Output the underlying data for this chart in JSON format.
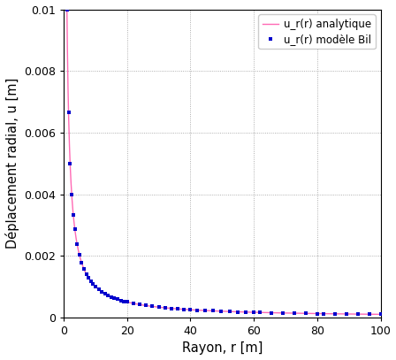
{
  "title": "",
  "xlabel": "Rayon, r [m]",
  "ylabel": "Déplacement radial, u [m]",
  "xlim": [
    0,
    100
  ],
  "ylim": [
    0,
    0.01
  ],
  "xticks": [
    0,
    20,
    40,
    60,
    80,
    100
  ],
  "yticks": [
    0,
    0.002,
    0.004,
    0.006,
    0.008,
    0.01
  ],
  "r_min": 1.0,
  "r_max": 100.0,
  "C": 0.01,
  "line_color": "#ff69b4",
  "scatter_color": "#0000cc",
  "legend_line_label": "u_r(r) analytique",
  "legend_scatter_label": "u_r(r) modèle Bil",
  "background_color": "#ffffff",
  "grid_color": "#999999",
  "grid_linestyle": ":",
  "fig_width": 4.48,
  "fig_height": 4.07,
  "dpi": 100
}
